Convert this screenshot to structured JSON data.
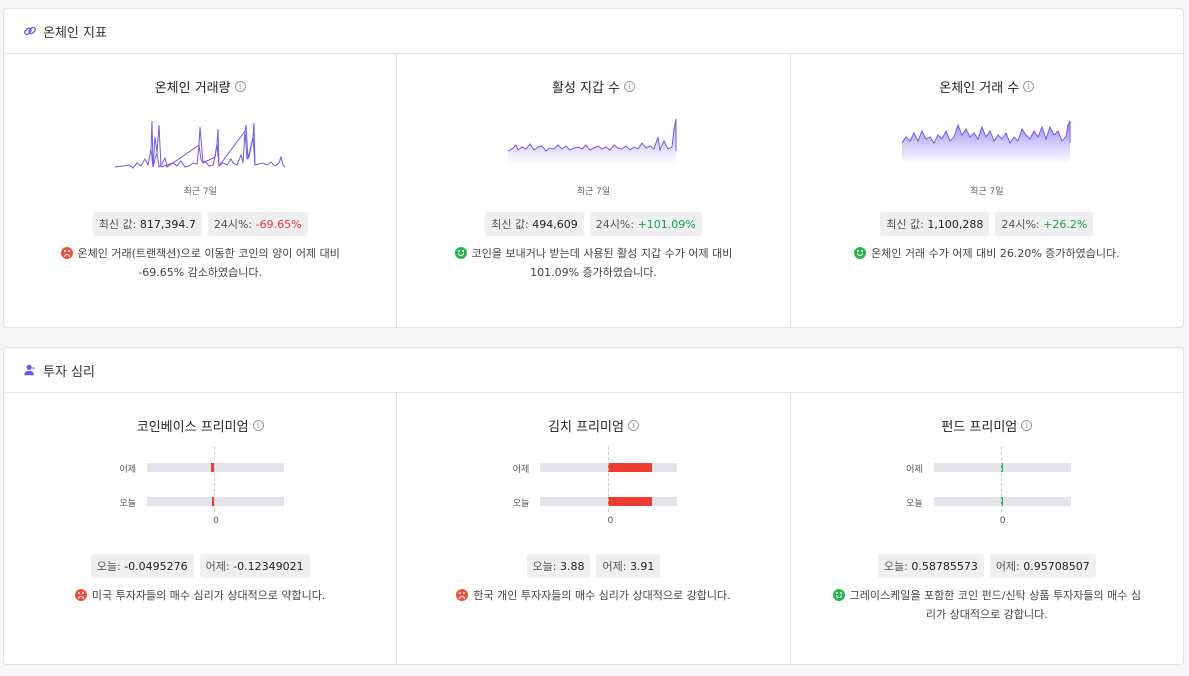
{
  "onchain": {
    "title": "온체인 지표",
    "icon": "link-icon",
    "cards": [
      {
        "title": "온체인 거래량",
        "period": "최근 7일",
        "latest_label": "최신 값:",
        "latest_value": "817,394.7",
        "change_label": "24시%:",
        "change_value": "-69.65%",
        "change_sign": "negative",
        "sentiment": "sad",
        "message": "온체인 거래(트랜잭션)으로 이동한 코인의 양이 어제 대비 -69.65% 감소하였습니다."
      },
      {
        "title": "활성 지갑 수",
        "period": "최근 7일",
        "latest_label": "최신 값:",
        "latest_value": "494,609",
        "change_label": "24시%:",
        "change_value": "+101.09%",
        "change_sign": "positive",
        "sentiment": "happy",
        "message": "코인을 보내거나 받는데 사용된 활성 지갑 수가 어제 대비 101.09% 증가하였습니다."
      },
      {
        "title": "온체인 거래 수",
        "period": "최근 7일",
        "latest_label": "최신 값:",
        "latest_value": "1,100,288",
        "change_label": "24시%:",
        "change_value": "+26.2%",
        "change_sign": "positive",
        "sentiment": "happy",
        "message": "온체인 거래 수가 어제 대비 26.20% 증가하였습니다."
      }
    ]
  },
  "sentiment": {
    "title": "투자 심리",
    "icon": "user-icon",
    "row_labels": [
      "어제",
      "오늘"
    ],
    "zero_label": "0",
    "cards": [
      {
        "title": "코인베이스 프리미엄",
        "today_label": "오늘:",
        "today_value": "-0.0495276",
        "yesterday_label": "어제:",
        "yesterday_value": "-0.12349021",
        "yesterday_bar_fraction": -0.02,
        "today_bar_fraction": -0.01,
        "bar_color": "#ee3b2f",
        "sentiment": "sad",
        "message": "미국 투자자들의 매수 심리가 상대적으로 약합니다."
      },
      {
        "title": "김치 프리미엄",
        "today_label": "오늘:",
        "today_value": "3.88",
        "yesterday_label": "어제:",
        "yesterday_value": "3.91",
        "yesterday_bar_fraction": 0.32,
        "today_bar_fraction": 0.32,
        "bar_color": "#ee3b2f",
        "sentiment": "sad",
        "message": "한국 개인 투자자들의 매수 심리가 상대적으로 강합니다."
      },
      {
        "title": "펀드 프리미엄",
        "today_label": "오늘:",
        "today_value": "0.58785573",
        "yesterday_label": "어제:",
        "yesterday_value": "0.95708507",
        "yesterday_bar_fraction": 0.01,
        "today_bar_fraction": 0.01,
        "bar_color": "#2bb24c",
        "sentiment": "happy",
        "message": "그레이스케일을 포함한 코인 펀드/신탁 상품 투자자들의 매수 심리가 상대적으로 강합니다."
      }
    ]
  },
  "colors": {
    "accent": "#6c5ce7",
    "negative": "#e53935",
    "positive": "#16a34a"
  }
}
